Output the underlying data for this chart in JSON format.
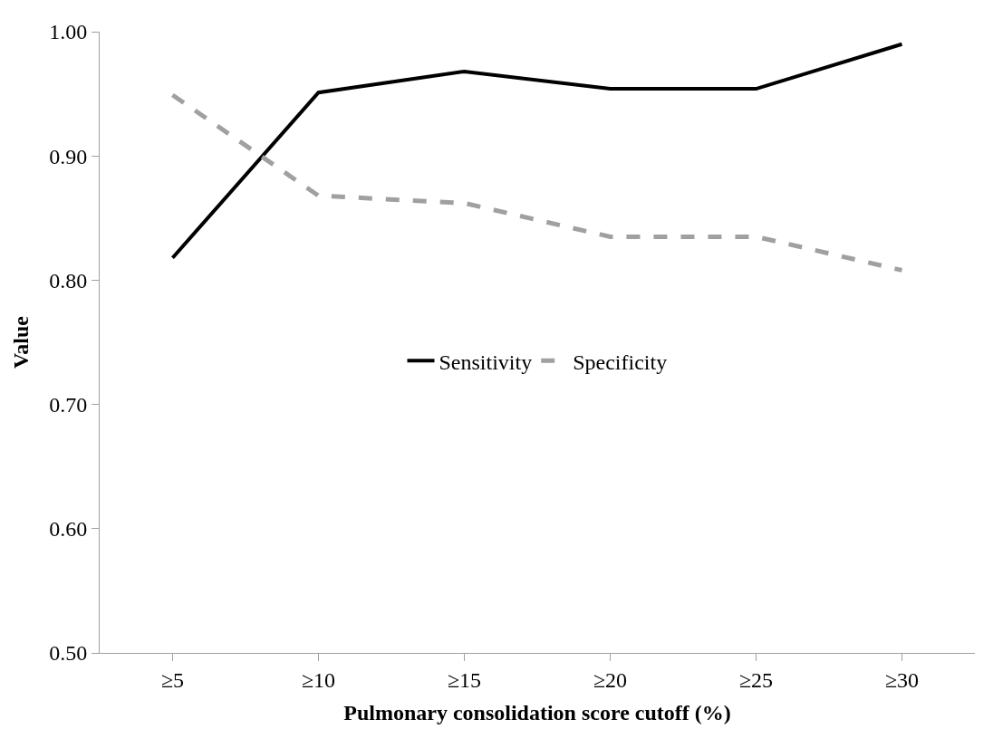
{
  "chart_data": {
    "type": "line",
    "xlabel": "Pulmonary consolidation score cutoff (%)",
    "ylabel": "Value",
    "categories": [
      "≥5",
      "≥10",
      "≥15",
      "≥20",
      "≥25",
      "≥30"
    ],
    "series": [
      {
        "name": "Sensitivity",
        "color": "#000000",
        "line_style": "solid",
        "values": [
          0.818,
          0.951,
          0.968,
          0.954,
          0.954,
          0.99
        ]
      },
      {
        "name": "Specificity",
        "color": "#a0a0a0",
        "line_style": "dashed",
        "values": [
          0.949,
          0.868,
          0.862,
          0.835,
          0.835,
          0.808
        ]
      }
    ],
    "ylim": [
      0.5,
      1.0
    ],
    "yticks": [
      {
        "value": 0.5,
        "label": "0.50"
      },
      {
        "value": 0.6,
        "label": "0.60"
      },
      {
        "value": 0.7,
        "label": "0.70"
      },
      {
        "value": 0.8,
        "label": "0.80"
      },
      {
        "value": 0.9,
        "label": "0.90"
      },
      {
        "value": 1.0,
        "label": "1.00"
      }
    ],
    "legend": "center",
    "marker": "none"
  }
}
